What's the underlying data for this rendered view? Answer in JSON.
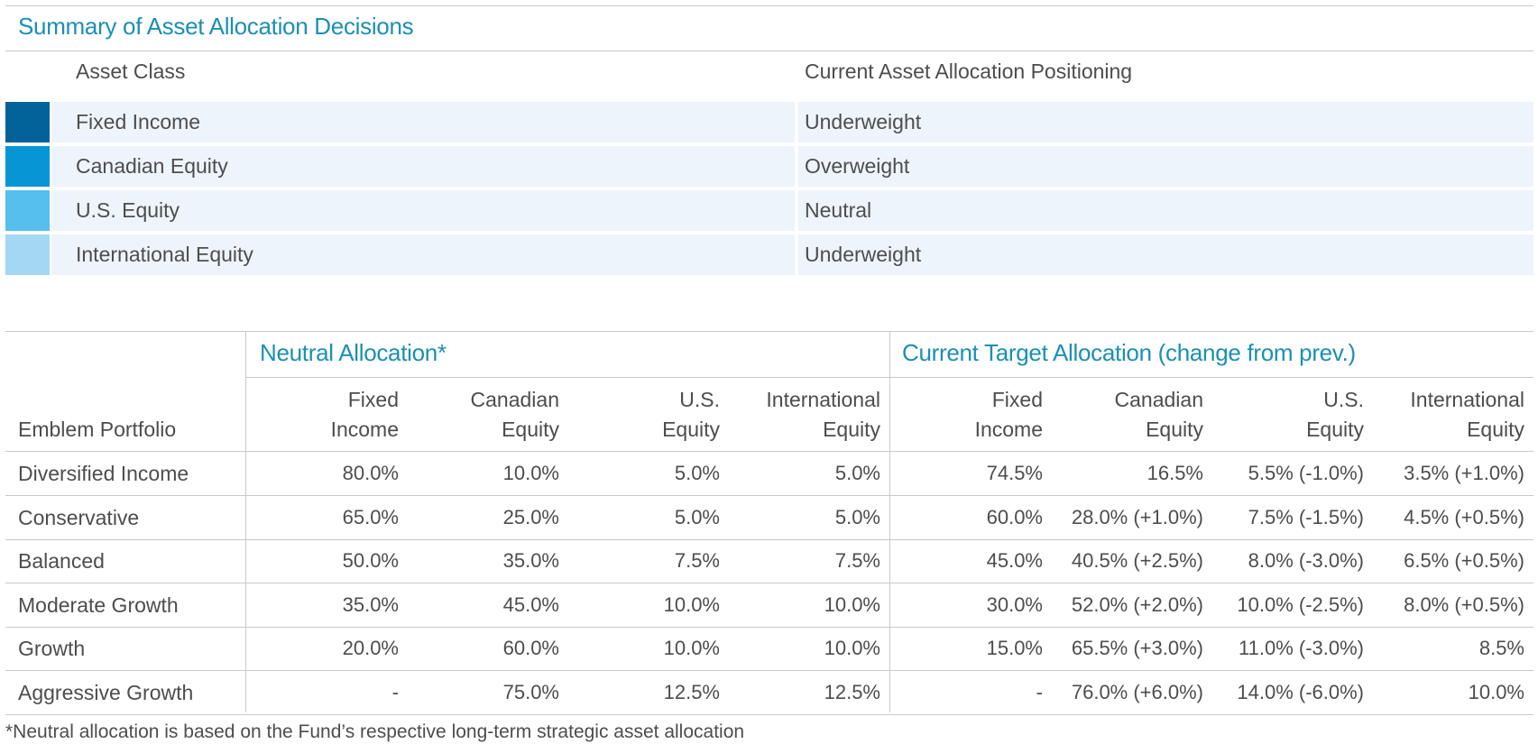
{
  "summary": {
    "title": "Summary of Asset Allocation Decisions",
    "header": {
      "asset_class": "Asset Class",
      "positioning": "Current Asset Allocation Positioning"
    },
    "rows": [
      {
        "asset": "Fixed Income",
        "positioning": "Underweight",
        "color": "#02639b"
      },
      {
        "asset": "Canadian Equity",
        "positioning": "Overweight",
        "color": "#0795d6"
      },
      {
        "asset": "U.S. Equity",
        "positioning": "Neutral",
        "color": "#56bfeb"
      },
      {
        "asset": "International Equity",
        "positioning": "Underweight",
        "color": "#a4d7f4"
      }
    ]
  },
  "allocation": {
    "neutral_title": "Neutral Allocation*",
    "target_title": "Current Target Allocation (change from prev.)",
    "row_header": "Emblem Portfolio",
    "columns": [
      {
        "line1": "Fixed",
        "line2": "Income"
      },
      {
        "line1": "Canadian",
        "line2": "Equity"
      },
      {
        "line1": "U.S.",
        "line2": "Equity"
      },
      {
        "line1": "International",
        "line2": "Equity"
      },
      {
        "line1": "Fixed",
        "line2": "Income"
      },
      {
        "line1": "Canadian",
        "line2": "Equity"
      },
      {
        "line1": "U.S.",
        "line2": "Equity"
      },
      {
        "line1": "International",
        "line2": "Equity"
      }
    ],
    "rows": [
      {
        "portfolio": "Diversified Income",
        "values": [
          "80.0%",
          "10.0%",
          "5.0%",
          "5.0%",
          "74.5%",
          "16.5%",
          "5.5% (-1.0%)",
          "3.5% (+1.0%)"
        ]
      },
      {
        "portfolio": "Conservative",
        "values": [
          "65.0%",
          "25.0%",
          "5.0%",
          "5.0%",
          "60.0%",
          "28.0% (+1.0%)",
          "7.5% (-1.5%)",
          "4.5% (+0.5%)"
        ]
      },
      {
        "portfolio": "Balanced",
        "values": [
          "50.0%",
          "35.0%",
          "7.5%",
          "7.5%",
          "45.0%",
          "40.5% (+2.5%)",
          "8.0% (-3.0%)",
          "6.5% (+0.5%)"
        ]
      },
      {
        "portfolio": "Moderate Growth",
        "values": [
          "35.0%",
          "45.0%",
          "10.0%",
          "10.0%",
          "30.0%",
          "52.0% (+2.0%)",
          "10.0% (-2.5%)",
          "8.0% (+0.5%)"
        ]
      },
      {
        "portfolio": "Growth",
        "values": [
          "20.0%",
          "60.0%",
          "10.0%",
          "10.0%",
          "15.0%",
          "65.5% (+3.0%)",
          "11.0% (-3.0%)",
          "8.5%"
        ]
      },
      {
        "portfolio": "Aggressive Growth",
        "values": [
          "-",
          "75.0%",
          "12.5%",
          "12.5%",
          "-",
          "76.0% (+6.0%)",
          "14.0% (-6.0%)",
          "10.0%"
        ]
      }
    ],
    "footnote": "*Neutral allocation is based on the Fund’s respective long-term strategic asset allocation"
  }
}
